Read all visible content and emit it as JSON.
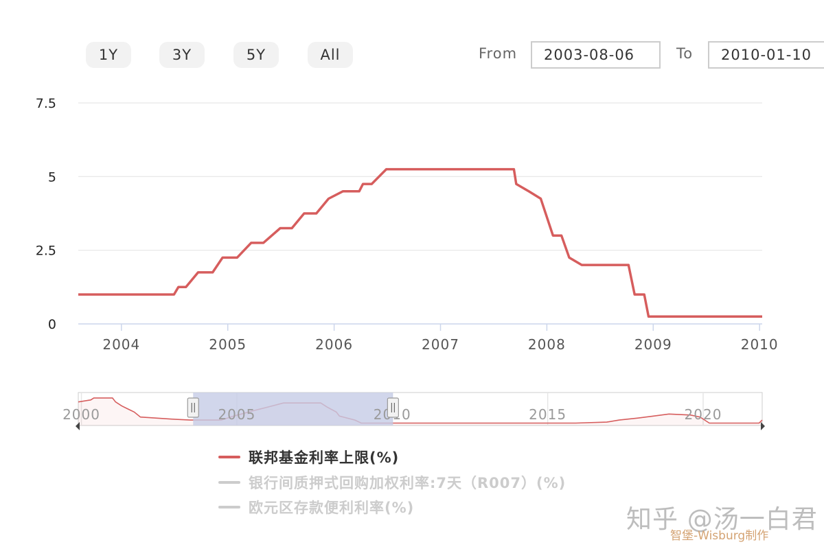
{
  "range_selector": {
    "buttons": [
      "1Y",
      "3Y",
      "5Y",
      "All"
    ],
    "from_label": "From",
    "from_value": "2003-08-06",
    "to_label": "To",
    "to_value": "2010-01-10"
  },
  "colors": {
    "fed": "#d65d5d",
    "inactive": "#cccccc",
    "navigator_mask": "#c5cce6",
    "grid": "#e6e6e6"
  },
  "chart_data": {
    "type": "line",
    "title": "",
    "xlabel": "",
    "ylabel": "",
    "x_range": [
      "2003-08-06",
      "2010-01-10"
    ],
    "ylim": [
      0,
      7.5
    ],
    "y_ticks": [
      "0",
      "2.5",
      "5",
      "7.5"
    ],
    "x_ticks": [
      "2004",
      "2005",
      "2006",
      "2007",
      "2008",
      "2009",
      "2010"
    ],
    "grid": true,
    "legend_position": "bottom",
    "series": [
      {
        "name": "联邦基金利率上限(%)",
        "visible": true,
        "points": [
          [
            "2003-08-06",
            1.0
          ],
          [
            "2004-06-30",
            1.0
          ],
          [
            "2004-07-15",
            1.25
          ],
          [
            "2004-08-10",
            1.25
          ],
          [
            "2004-09-21",
            1.75
          ],
          [
            "2004-11-10",
            1.75
          ],
          [
            "2004-12-14",
            2.25
          ],
          [
            "2005-02-02",
            2.25
          ],
          [
            "2005-03-22",
            2.75
          ],
          [
            "2005-05-03",
            2.75
          ],
          [
            "2005-06-30",
            3.25
          ],
          [
            "2005-08-09",
            3.25
          ],
          [
            "2005-09-20",
            3.75
          ],
          [
            "2005-11-01",
            3.75
          ],
          [
            "2005-12-13",
            4.25
          ],
          [
            "2006-01-31",
            4.5
          ],
          [
            "2006-03-28",
            4.5
          ],
          [
            "2006-04-10",
            4.75
          ],
          [
            "2006-05-10",
            4.75
          ],
          [
            "2006-06-29",
            5.25
          ],
          [
            "2007-09-10",
            5.25
          ],
          [
            "2007-09-18",
            4.75
          ],
          [
            "2007-10-31",
            4.5
          ],
          [
            "2007-12-11",
            4.25
          ],
          [
            "2008-01-22",
            3.0
          ],
          [
            "2008-02-20",
            3.0
          ],
          [
            "2008-03-18",
            2.25
          ],
          [
            "2008-04-30",
            2.0
          ],
          [
            "2008-10-08",
            2.0
          ],
          [
            "2008-10-29",
            1.0
          ],
          [
            "2008-12-01",
            1.0
          ],
          [
            "2008-12-16",
            0.25
          ],
          [
            "2010-01-10",
            0.25
          ]
        ]
      },
      {
        "name": "银行间质押式回购加权利率:7天（R007）(%)",
        "visible": false,
        "points": []
      },
      {
        "name": "欧元区存款便利利率(%)",
        "visible": false,
        "points": []
      }
    ]
  },
  "navigator": {
    "range": [
      1999.9,
      2021.9
    ],
    "selection": [
      "2003-08-06",
      "2010-01-10"
    ],
    "x_ticks": [
      "2000",
      "2005",
      "2010",
      "2015",
      "2020"
    ],
    "ylim": [
      0,
      7.5
    ],
    "series_points": [
      [
        1999.9,
        5.5
      ],
      [
        2000.3,
        6.0
      ],
      [
        2000.4,
        6.5
      ],
      [
        2001.0,
        6.5
      ],
      [
        2001.1,
        5.5
      ],
      [
        2001.3,
        4.5
      ],
      [
        2001.5,
        3.75
      ],
      [
        2001.7,
        3.0
      ],
      [
        2001.9,
        1.75
      ],
      [
        2002.9,
        1.25
      ],
      [
        2003.5,
        1.0
      ],
      [
        2004.5,
        1.0
      ],
      [
        2004.9,
        2.0
      ],
      [
        2005.5,
        3.25
      ],
      [
        2006.0,
        4.25
      ],
      [
        2006.5,
        5.25
      ],
      [
        2007.7,
        5.25
      ],
      [
        2007.9,
        4.25
      ],
      [
        2008.2,
        3.0
      ],
      [
        2008.3,
        2.0
      ],
      [
        2008.8,
        1.0
      ],
      [
        2009.0,
        0.25
      ],
      [
        2015.9,
        0.25
      ],
      [
        2016.9,
        0.5
      ],
      [
        2017.3,
        1.0
      ],
      [
        2017.9,
        1.5
      ],
      [
        2018.4,
        2.0
      ],
      [
        2018.9,
        2.5
      ],
      [
        2019.6,
        2.25
      ],
      [
        2019.9,
        1.75
      ],
      [
        2020.2,
        0.25
      ],
      [
        2021.8,
        0.25
      ],
      [
        2021.9,
        1.0
      ]
    ]
  },
  "watermark": {
    "text": "知乎 @汤一白君",
    "credit": "智堡-Wisburg制作"
  }
}
